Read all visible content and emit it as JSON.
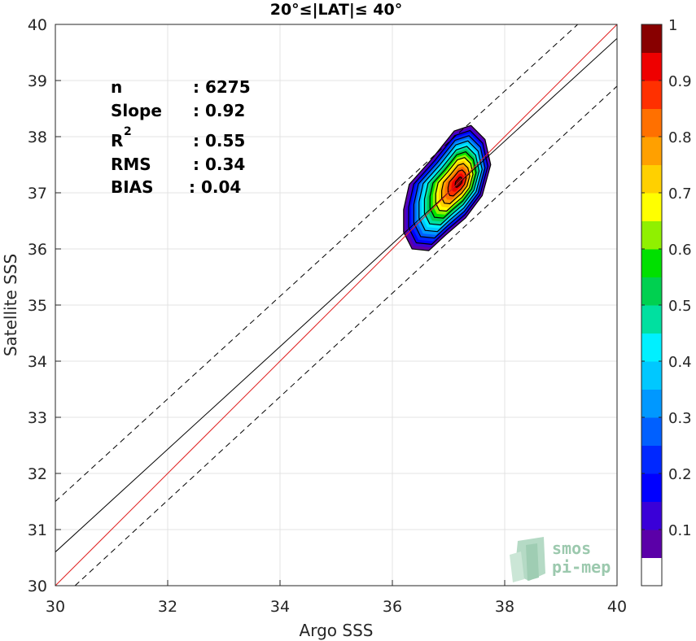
{
  "chart_data": {
    "type": "heatmap",
    "title": "20°≤|LAT|≤ 40°",
    "xlabel": "Argo SSS",
    "ylabel": "Satellite SSS",
    "xlim": [
      30,
      40
    ],
    "ylim": [
      30,
      40
    ],
    "xticks": [
      "30",
      "32",
      "34",
      "36",
      "38",
      "40"
    ],
    "yticks": [
      "30",
      "31",
      "32",
      "33",
      "34",
      "35",
      "36",
      "37",
      "38",
      "39",
      "40"
    ],
    "grid": true,
    "stats": [
      {
        "label": "n",
        "value": ": 6275"
      },
      {
        "label": "Slope",
        "value": ": 0.92"
      },
      {
        "label": "R",
        "sup": "2",
        "value": ": 0.55"
      },
      {
        "label": "RMS",
        "value": ": 0.34"
      },
      {
        "label": "BIAS",
        "value": ": 0.04"
      }
    ],
    "lines": {
      "identity": {
        "color": "#e02020",
        "points": [
          [
            30,
            30
          ],
          [
            40,
            40
          ]
        ]
      },
      "fit": {
        "color": "#000000",
        "points": [
          [
            30,
            30.6
          ],
          [
            40,
            39.75
          ]
        ]
      },
      "upper_dashed": {
        "color": "#000000",
        "points": [
          [
            30,
            31.5
          ],
          [
            39.3,
            40
          ]
        ]
      },
      "lower_dashed": {
        "color": "#000000",
        "points": [
          [
            30.35,
            30
          ],
          [
            40,
            38.9
          ]
        ]
      }
    },
    "density": {
      "center": [
        37.0,
        37.1
      ],
      "principal_axis_slope": 1.12,
      "outer_contour": [
        [
          36.2,
          36.3
        ],
        [
          36.35,
          36.0
        ],
        [
          36.65,
          35.97
        ],
        [
          36.95,
          36.25
        ],
        [
          37.3,
          36.55
        ],
        [
          37.6,
          36.95
        ],
        [
          37.75,
          37.5
        ],
        [
          37.65,
          37.95
        ],
        [
          37.4,
          38.2
        ],
        [
          37.1,
          38.1
        ],
        [
          36.7,
          37.6
        ],
        [
          36.3,
          37.15
        ],
        [
          36.2,
          36.7
        ]
      ],
      "peak": [
        37.2,
        37.2
      ],
      "levels": [
        0.05,
        0.1,
        0.15,
        0.2,
        0.25,
        0.3,
        0.35,
        0.4,
        0.45,
        0.5,
        0.55,
        0.6,
        0.65,
        0.7,
        0.75,
        0.8,
        0.85,
        0.9,
        0.95,
        1.0
      ]
    },
    "colorbar": {
      "ticks": [
        "0.1",
        "0.2",
        "0.3",
        "0.4",
        "0.5",
        "0.6",
        "0.7",
        "0.8",
        "0.9",
        "1"
      ],
      "tick_values": [
        0.1,
        0.2,
        0.3,
        0.4,
        0.5,
        0.6,
        0.7,
        0.8,
        0.9,
        1.0
      ],
      "range": [
        0,
        1
      ],
      "bands": [
        {
          "from": 0.0,
          "to": 0.05,
          "color": "#ffffff"
        },
        {
          "from": 0.05,
          "to": 0.1,
          "color": "#5b00a8"
        },
        {
          "from": 0.1,
          "to": 0.15,
          "color": "#3a00d8"
        },
        {
          "from": 0.15,
          "to": 0.2,
          "color": "#0000ff"
        },
        {
          "from": 0.2,
          "to": 0.25,
          "color": "#0028ff"
        },
        {
          "from": 0.25,
          "to": 0.3,
          "color": "#0060ff"
        },
        {
          "from": 0.3,
          "to": 0.35,
          "color": "#0098ff"
        },
        {
          "from": 0.35,
          "to": 0.4,
          "color": "#00c8ff"
        },
        {
          "from": 0.4,
          "to": 0.45,
          "color": "#00f0ff"
        },
        {
          "from": 0.45,
          "to": 0.5,
          "color": "#00e0a0"
        },
        {
          "from": 0.5,
          "to": 0.55,
          "color": "#00d050"
        },
        {
          "from": 0.55,
          "to": 0.6,
          "color": "#00e000"
        },
        {
          "from": 0.6,
          "to": 0.65,
          "color": "#90f000"
        },
        {
          "from": 0.65,
          "to": 0.7,
          "color": "#ffff00"
        },
        {
          "from": 0.7,
          "to": 0.75,
          "color": "#ffd000"
        },
        {
          "from": 0.75,
          "to": 0.8,
          "color": "#ffa000"
        },
        {
          "from": 0.8,
          "to": 0.85,
          "color": "#ff7000"
        },
        {
          "from": 0.85,
          "to": 0.9,
          "color": "#ff3000"
        },
        {
          "from": 0.9,
          "to": 0.95,
          "color": "#ee0000"
        },
        {
          "from": 0.95,
          "to": 1.0,
          "color": "#880000"
        }
      ]
    }
  },
  "logo": {
    "line1": "smos",
    "line2": "pi-mep"
  }
}
